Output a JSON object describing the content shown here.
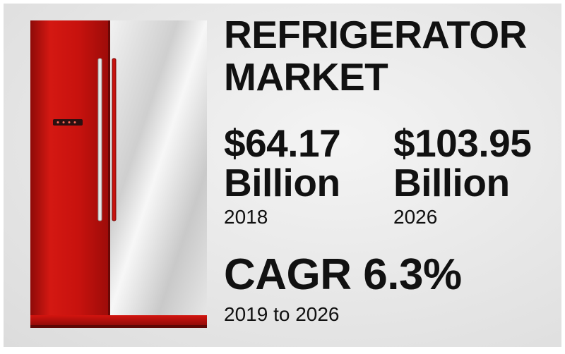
{
  "title": {
    "line1": "REFRIGERATOR",
    "line2": "MARKET"
  },
  "stats": {
    "base": {
      "value": "$64.17",
      "unit": "Billion",
      "year": "2018"
    },
    "forecast": {
      "value": "$103.95",
      "unit": "Billion",
      "year": "2026"
    }
  },
  "cagr": {
    "value": "CAGR 6.3%",
    "period": "2019 to 2026"
  },
  "illustration": {
    "icon": "refrigerator-icon",
    "colors": {
      "door_red": "#c8120e",
      "door_silver": "#d9d9d9",
      "base": "#b00d0b"
    }
  }
}
